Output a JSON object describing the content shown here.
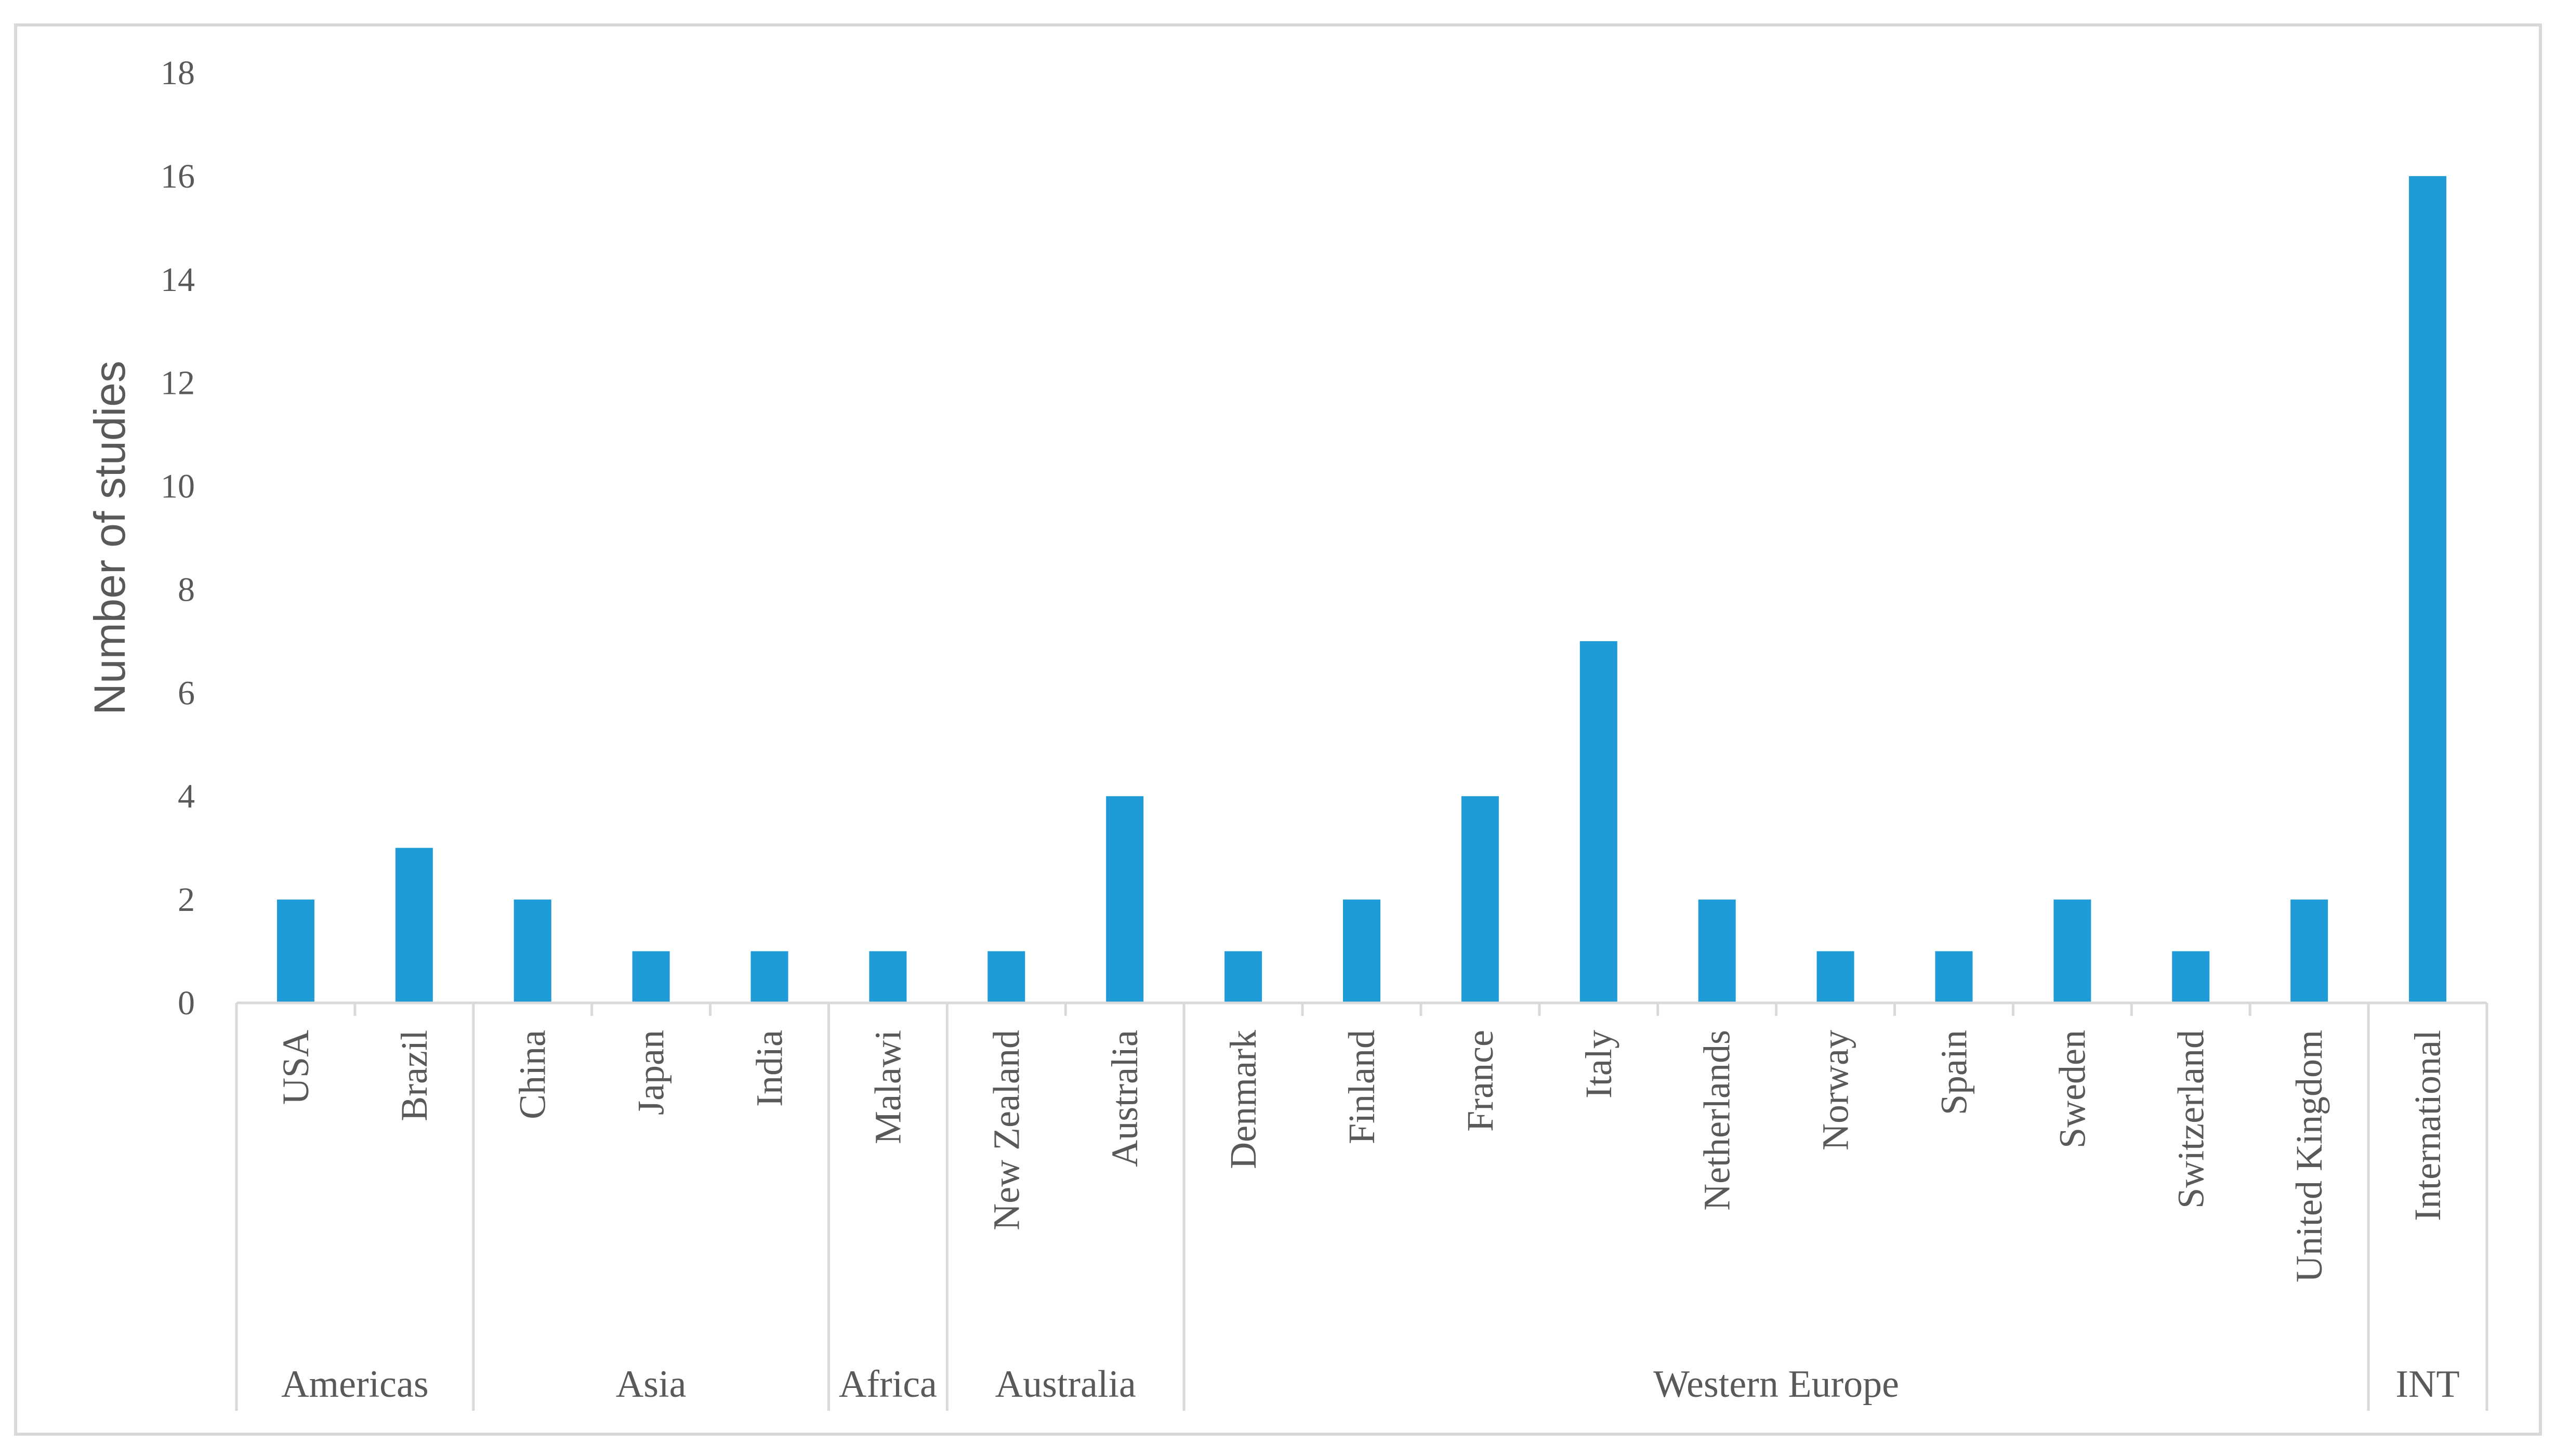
{
  "chart_data": {
    "type": "bar",
    "ylabel": "Number of studies",
    "xlabel": "",
    "ylim": [
      0,
      18
    ],
    "yticks": [
      0,
      2,
      4,
      6,
      8,
      10,
      12,
      14,
      16,
      18
    ],
    "grid": false,
    "legend": "none",
    "bar_color": "#1f9bd7",
    "categories": [
      "USA",
      "Brazil",
      "China",
      "Japan",
      "India",
      "Malawi",
      "New Zealand",
      "Australia",
      "Denmark",
      "Finland",
      "France",
      "Italy",
      "Netherlands",
      "Norway",
      "Spain",
      "Sweden",
      "Switzerland",
      "United Kingdom",
      "International"
    ],
    "values": [
      2,
      3,
      2,
      1,
      1,
      1,
      1,
      4,
      1,
      2,
      4,
      7,
      2,
      1,
      1,
      2,
      1,
      2,
      16
    ],
    "groups": [
      {
        "label": "Americas",
        "start": 0,
        "count": 2
      },
      {
        "label": "Asia",
        "start": 2,
        "count": 3
      },
      {
        "label": "Africa",
        "start": 5,
        "count": 1
      },
      {
        "label": "Australia",
        "start": 6,
        "count": 2
      },
      {
        "label": "Western Europe",
        "start": 8,
        "count": 10
      },
      {
        "label": "INT",
        "start": 18,
        "count": 1
      }
    ]
  }
}
